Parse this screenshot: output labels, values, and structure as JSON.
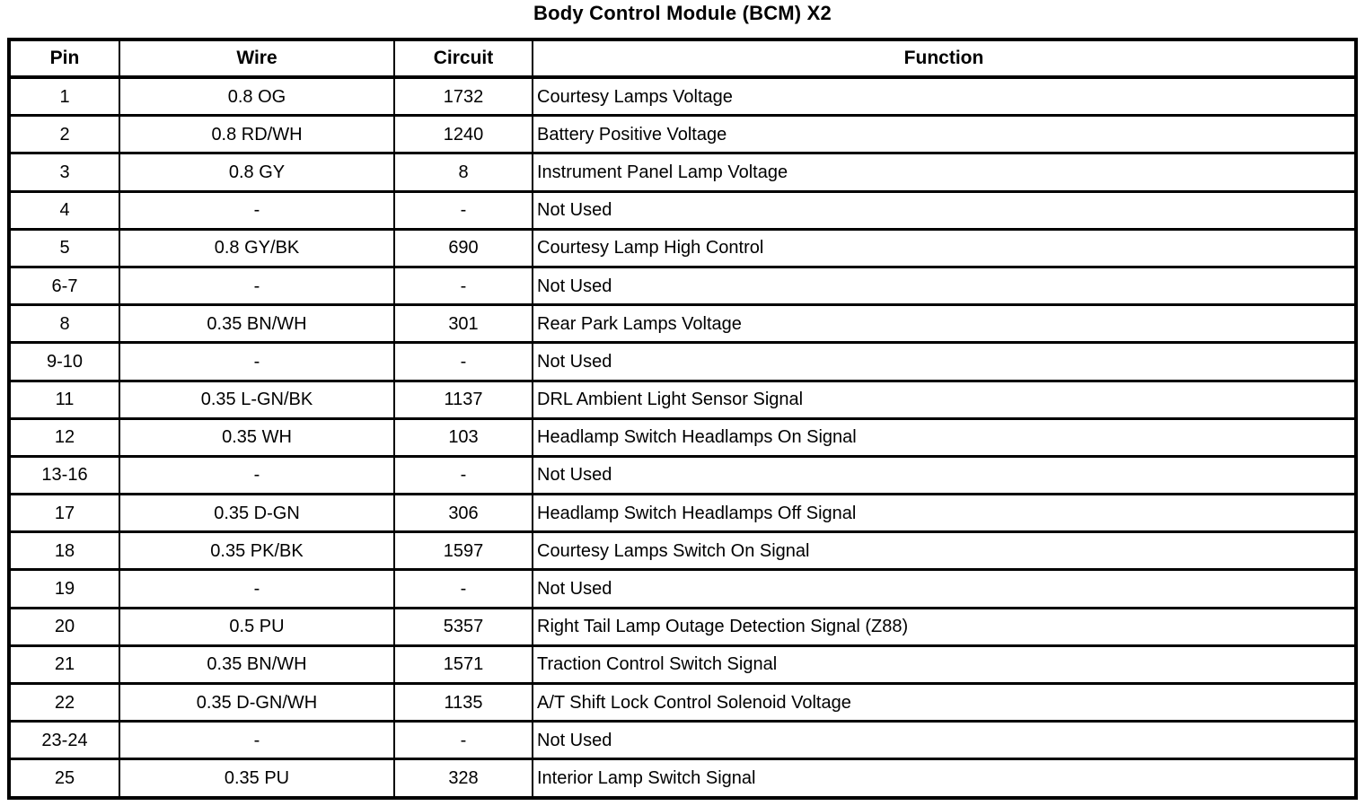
{
  "title": "Body Control Module (BCM) X2",
  "colors": {
    "border": "#000000",
    "background": "#ffffff",
    "text": "#000000"
  },
  "table": {
    "columns": [
      "Pin",
      "Wire",
      "Circuit",
      "Function"
    ],
    "rows": [
      [
        "1",
        "0.8 OG",
        "1732",
        "Courtesy Lamps Voltage"
      ],
      [
        "2",
        "0.8 RD/WH",
        "1240",
        "Battery Positive Voltage"
      ],
      [
        "3",
        "0.8 GY",
        "8",
        "Instrument Panel Lamp Voltage"
      ],
      [
        "4",
        "-",
        "-",
        "Not Used"
      ],
      [
        "5",
        "0.8 GY/BK",
        "690",
        "Courtesy Lamp High Control"
      ],
      [
        "6-7",
        "-",
        "-",
        "Not Used"
      ],
      [
        "8",
        "0.35 BN/WH",
        "301",
        "Rear Park Lamps Voltage"
      ],
      [
        "9-10",
        "-",
        "-",
        "Not Used"
      ],
      [
        "11",
        "0.35 L-GN/BK",
        "1137",
        "DRL Ambient Light Sensor Signal"
      ],
      [
        "12",
        "0.35 WH",
        "103",
        "Headlamp Switch Headlamps On Signal"
      ],
      [
        "13-16",
        "-",
        "-",
        "Not Used"
      ],
      [
        "17",
        "0.35 D-GN",
        "306",
        "Headlamp Switch Headlamps Off Signal"
      ],
      [
        "18",
        "0.35 PK/BK",
        "1597",
        "Courtesy Lamps Switch On Signal"
      ],
      [
        "19",
        "-",
        "-",
        "Not Used"
      ],
      [
        "20",
        "0.5 PU",
        "5357",
        "Right Tail Lamp Outage Detection Signal (Z88)"
      ],
      [
        "21",
        "0.35 BN/WH",
        "1571",
        "Traction Control Switch Signal"
      ],
      [
        "22",
        "0.35 D-GN/WH",
        "1135",
        "A/T Shift Lock Control Solenoid Voltage"
      ],
      [
        "23-24",
        "-",
        "-",
        "Not Used"
      ],
      [
        "25",
        "0.35 PU",
        "328",
        "Interior Lamp Switch Signal"
      ]
    ]
  }
}
